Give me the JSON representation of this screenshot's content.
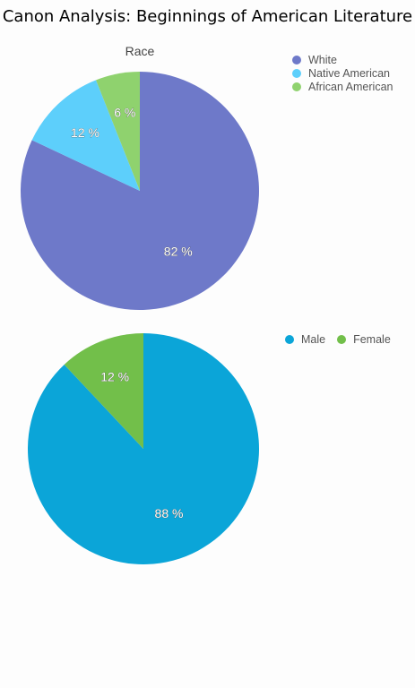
{
  "page_title": "Canon Analysis: Beginnings of American Literature",
  "chart_data": [
    {
      "type": "pie",
      "title": "Race",
      "legend_position": "top-right",
      "slices": [
        {
          "label": "White",
          "value": 82,
          "display": "82 %",
          "color": "#6e79c9"
        },
        {
          "label": "Native American",
          "value": 12,
          "display": "12 %",
          "color": "#5dcffb"
        },
        {
          "label": "African American",
          "value": 6,
          "display": "6 %",
          "color": "#8fd26e"
        }
      ]
    },
    {
      "type": "pie",
      "title": "",
      "legend_position": "top-right",
      "slices": [
        {
          "label": "Male",
          "value": 88,
          "display": "88 %",
          "color": "#0ba5d8"
        },
        {
          "label": "Female",
          "value": 12,
          "display": "12 %",
          "color": "#72bf4a"
        }
      ]
    }
  ]
}
